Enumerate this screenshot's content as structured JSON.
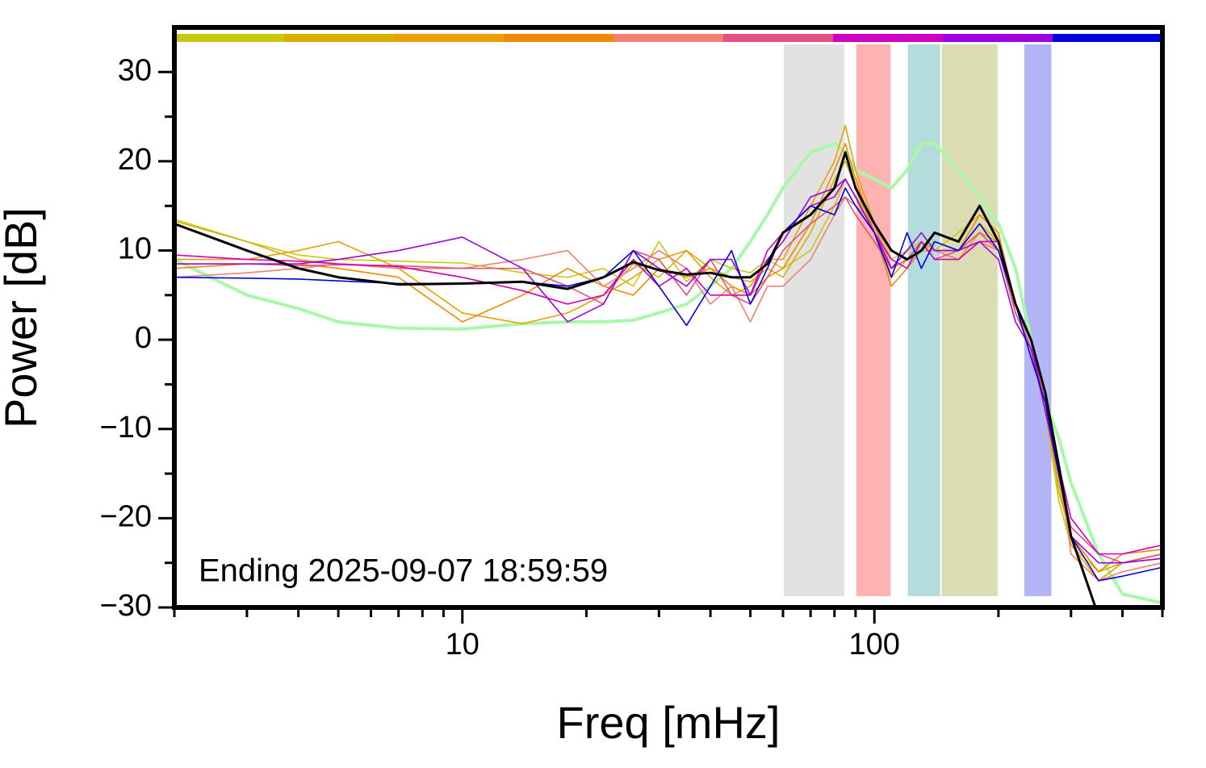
{
  "chart_data": {
    "type": "line",
    "annotation": "Ending 2025-09-07 18:59:59",
    "xlabel": "Freq [mHz]",
    "ylabel": "Power [dB]",
    "xscale": "log",
    "xlim": [
      2,
      500
    ],
    "ylim": [
      -30,
      35
    ],
    "xticks": [
      10,
      100
    ],
    "xminor_ticks": [
      2,
      3,
      4,
      5,
      6,
      7,
      8,
      9,
      20,
      30,
      40,
      50,
      60,
      70,
      80,
      90,
      200,
      300,
      400,
      500
    ],
    "yticks": [
      {
        "value": -30,
        "label": "−30"
      },
      {
        "value": -20,
        "label": "−20"
      },
      {
        "value": -10,
        "label": "−10"
      },
      0,
      10,
      20,
      30
    ],
    "yminor_ticks": [
      -25,
      -15,
      -5,
      5,
      15,
      25
    ],
    "colorbar": [
      "#c8c810",
      "#d8b000",
      "#e8a000",
      "#f08800",
      "#f08070",
      "#e05080",
      "#d000c0",
      "#a000e0",
      "#0000e0"
    ],
    "bands": [
      {
        "x": [
          60,
          85
        ],
        "color": "#e2e2e2"
      },
      {
        "x": [
          90,
          110
        ],
        "color": "#ffb2b0"
      },
      {
        "x": [
          120,
          145
        ],
        "color": "#b4dcdc"
      },
      {
        "x": [
          145,
          200
        ],
        "color": "#dcdcb4"
      },
      {
        "x": [
          230,
          270
        ],
        "color": "#b4b4f8"
      }
    ],
    "x": [
      2,
      3,
      4,
      5,
      7,
      10,
      14,
      18,
      22,
      26,
      30,
      35,
      40,
      45,
      50,
      55,
      60,
      70,
      80,
      85,
      90,
      100,
      110,
      120,
      130,
      140,
      160,
      180,
      200,
      220,
      240,
      260,
      280,
      300,
      350,
      400,
      500
    ],
    "series": [
      {
        "color": "#a8f8a8",
        "line_width": 4,
        "values": [
          9,
          5,
          3.5,
          2,
          1.3,
          1.2,
          1.8,
          2,
          2,
          2.2,
          3,
          4,
          6,
          8,
          11,
          14,
          17,
          21,
          22,
          21,
          19,
          18,
          17,
          19,
          22,
          22,
          19,
          16,
          13,
          8,
          0,
          -7,
          -11,
          -16,
          -24,
          -28.5,
          -29.5
        ]
      },
      {
        "color": "#c8c810",
        "line_width": 1.6,
        "values": [
          13.5,
          11,
          9.5,
          9,
          8.8,
          8.6,
          7.5,
          7,
          8,
          6,
          11,
          6.5,
          9,
          8,
          7.5,
          9,
          8,
          10,
          15,
          18,
          16,
          13,
          9,
          10,
          11,
          10,
          12,
          14,
          12,
          3,
          -1,
          -8,
          -18,
          -23,
          -26,
          -25,
          -24
        ]
      },
      {
        "color": "#d8b000",
        "line_width": 1.6,
        "values": [
          13.3,
          11,
          9,
          8.5,
          8.2,
          7,
          5.5,
          4,
          5,
          8.5,
          7,
          10,
          8,
          7,
          6.5,
          8,
          7,
          12,
          18,
          20,
          17,
          12,
          8,
          9,
          10,
          11,
          10,
          13,
          11,
          4,
          0,
          -7,
          -17,
          -22,
          -26,
          -25,
          -24.5
        ]
      },
      {
        "color": "#e8a000",
        "line_width": 1.6,
        "values": [
          9,
          9,
          10,
          11,
          8,
          3,
          1.8,
          3,
          5,
          7,
          9,
          10,
          7,
          5,
          6,
          9,
          9,
          15,
          20,
          24,
          19,
          13,
          7,
          9,
          11,
          10,
          9,
          12,
          11,
          3,
          -1,
          -8,
          -16,
          -23,
          -27,
          -25,
          -24
        ]
      },
      {
        "color": "#f08800",
        "line_width": 1.6,
        "values": [
          8,
          8.5,
          8.5,
          8,
          7,
          2,
          5,
          8,
          6,
          5,
          8,
          7,
          8,
          6,
          5,
          7,
          8,
          13,
          19,
          22,
          18,
          12,
          6,
          8,
          10,
          10,
          10,
          14,
          12,
          4,
          0,
          -7,
          -15,
          -22,
          -26,
          -24,
          -23.5
        ]
      },
      {
        "color": "#f08070",
        "line_width": 1.6,
        "values": [
          7,
          7.5,
          8,
          8.5,
          8,
          8,
          9,
          10,
          6,
          8,
          10,
          8,
          4,
          6,
          2,
          6,
          6,
          9,
          14,
          16,
          15,
          13,
          8,
          9,
          10,
          10,
          9,
          11,
          10,
          4,
          -1,
          -7,
          -14,
          -24,
          -27,
          -26,
          -25
        ]
      },
      {
        "color": "#e05080",
        "line_width": 1.6,
        "values": [
          8.5,
          8.5,
          8.3,
          8.4,
          8.3,
          8,
          8,
          6,
          4,
          10,
          9,
          5,
          9,
          5,
          4,
          7,
          10,
          13,
          15,
          16,
          14,
          11,
          8,
          9,
          11,
          9,
          10,
          12,
          10,
          3,
          -1,
          -8,
          -15,
          -21,
          -24,
          -25,
          -24
        ]
      },
      {
        "color": "#d000c0",
        "line_width": 1.6,
        "values": [
          9.5,
          9,
          8.8,
          8.5,
          8.2,
          7,
          5.5,
          4,
          5,
          9,
          6,
          8,
          5,
          5,
          5,
          10,
          12,
          15,
          16,
          18,
          16,
          12,
          9,
          8,
          11,
          9,
          9,
          11,
          11,
          4,
          0,
          -8,
          -14,
          -20,
          -24,
          -24,
          -23
        ]
      },
      {
        "color": "#a000e0",
        "line_width": 1.6,
        "values": [
          8.5,
          8.5,
          8.5,
          9,
          10,
          11.5,
          8,
          2,
          4,
          10,
          8,
          6,
          9,
          9,
          5,
          9,
          11,
          16,
          17,
          18,
          16,
          12,
          8,
          10,
          12,
          10,
          10,
          11,
          9,
          2,
          -1,
          -8,
          -15,
          -22,
          -25,
          -25,
          -24.5
        ]
      },
      {
        "color": "#0000e0",
        "line_width": 1.6,
        "values": [
          7,
          6.9,
          6.8,
          6.6,
          6.3,
          6.3,
          6.5,
          6,
          7,
          10,
          6,
          1.6,
          6,
          10,
          4,
          8,
          12,
          15,
          14,
          17,
          15,
          12,
          7,
          12,
          8,
          11,
          10,
          13,
          10,
          4,
          -2,
          -7,
          -15,
          -22,
          -27,
          -26.5,
          -25.5
        ]
      },
      {
        "color": "#000000",
        "line_width": 3,
        "values": [
          13,
          10,
          8,
          7,
          6.2,
          6.3,
          6.5,
          5.7,
          7,
          8.7,
          7.8,
          7.3,
          7.5,
          7,
          7,
          8.5,
          12,
          14,
          17,
          21,
          17,
          13,
          10,
          9,
          10,
          12,
          11,
          15,
          11,
          4,
          0,
          -6,
          -14,
          -22,
          -31,
          null,
          null
        ]
      }
    ]
  }
}
